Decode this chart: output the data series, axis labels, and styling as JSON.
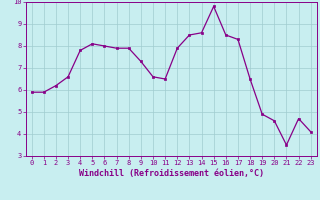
{
  "x": [
    0,
    1,
    2,
    3,
    4,
    5,
    6,
    7,
    8,
    9,
    10,
    11,
    12,
    13,
    14,
    15,
    16,
    17,
    18,
    19,
    20,
    21,
    22,
    23
  ],
  "y": [
    5.9,
    5.9,
    6.2,
    6.6,
    7.8,
    8.1,
    8.0,
    7.9,
    7.9,
    7.3,
    6.6,
    6.5,
    7.9,
    8.5,
    8.6,
    9.8,
    8.5,
    8.3,
    6.5,
    4.9,
    4.6,
    3.5,
    4.7,
    4.1
  ],
  "line_color": "#880088",
  "marker": "s",
  "marker_size": 2.0,
  "line_width": 0.9,
  "bg_color": "#c8eef0",
  "grid_color": "#a0ccd0",
  "xlabel": "Windchill (Refroidissement éolien,°C)",
  "xlabel_color": "#880088",
  "tick_color": "#880088",
  "spine_color": "#880088",
  "xlim": [
    -0.5,
    23.5
  ],
  "ylim": [
    3,
    10
  ],
  "yticks": [
    3,
    4,
    5,
    6,
    7,
    8,
    9,
    10
  ],
  "xticks": [
    0,
    1,
    2,
    3,
    4,
    5,
    6,
    7,
    8,
    9,
    10,
    11,
    12,
    13,
    14,
    15,
    16,
    17,
    18,
    19,
    20,
    21,
    22,
    23
  ],
  "tick_fontsize": 5.0,
  "xlabel_fontsize": 6.0
}
